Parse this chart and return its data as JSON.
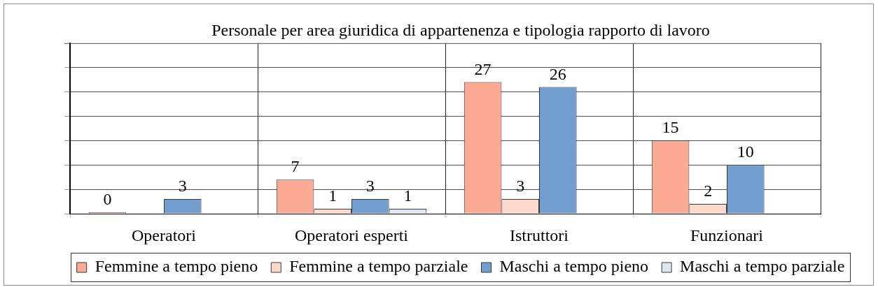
{
  "chart_data": {
    "type": "bar",
    "title": "Personale per area giuridica di appartenenza e tipologia rapporto di lavoro",
    "categories": [
      "Operatori",
      "Operatori esperti",
      "Istruttori",
      "Funzionari"
    ],
    "series": [
      {
        "name": "Femmine a tempo pieno",
        "color": "#fcaa94",
        "values": [
          0,
          7,
          27,
          15
        ]
      },
      {
        "name": "Femmine a tempo parziale",
        "color": "#fdd8cc",
        "values": [
          null,
          1,
          3,
          2
        ]
      },
      {
        "name": "Maschi a tempo pieno",
        "color": "#729fcf",
        "values": [
          3,
          3,
          26,
          10
        ]
      },
      {
        "name": "Maschi a tempo parziale",
        "color": "#dce6f2",
        "values": [
          null,
          1,
          null,
          null
        ]
      }
    ],
    "ylim": [
      0,
      35
    ],
    "yticks": [
      {
        "value": 0,
        "label": null
      },
      {
        "value": 5,
        "label": null
      },
      {
        "value": 10,
        "label": null
      },
      {
        "value": 15,
        "label": null
      },
      {
        "value": 20,
        "label": null
      },
      {
        "value": 25,
        "label": null
      },
      {
        "value": 30,
        "label": null
      }
    ],
    "tick_labels": "x",
    "grid": true,
    "legend": "bottom",
    "data_labels": true
  }
}
